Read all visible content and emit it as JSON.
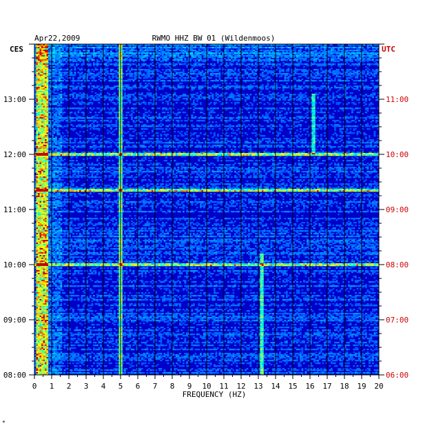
{
  "chart_data": {
    "type": "heatmap",
    "title_date": "Apr22,2009",
    "title_station": "RWMO HHZ BW 01 (Wildenmoos)",
    "xlabel": "FREQUENCY (HZ)",
    "xlim": [
      0,
      20
    ],
    "x_ticks": [
      "0",
      "1",
      "2",
      "3",
      "4",
      "5",
      "6",
      "7",
      "8",
      "9",
      "10",
      "11",
      "12",
      "13",
      "14",
      "15",
      "16",
      "17",
      "18",
      "19",
      "20"
    ],
    "left_axis_label": "CES",
    "right_axis_label": "UTC",
    "left_ticks": [
      "08:00",
      "09:00",
      "10:00",
      "11:00",
      "12:00",
      "13:00"
    ],
    "right_ticks": [
      "06:00",
      "07:00",
      "08:00",
      "09:00",
      "10:00",
      "11:00"
    ],
    "tick_hours": [
      0,
      1,
      2,
      3,
      4,
      5
    ],
    "ylim_hours": [
      0,
      6
    ],
    "colors": {
      "background": "#0000c8",
      "grid": "#000000",
      "right_label": "#cc0000",
      "left_label": "#000000"
    },
    "features": {
      "low_freq_band_hz": [
        0.1,
        0.8
      ],
      "line_5hz": 5.0,
      "line_13_2hz": 13.2,
      "line_16_2hz": 16.2,
      "broadband_events_hours": [
        3.35,
        2.0,
        4.0
      ]
    }
  },
  "footnote_mark": "*"
}
